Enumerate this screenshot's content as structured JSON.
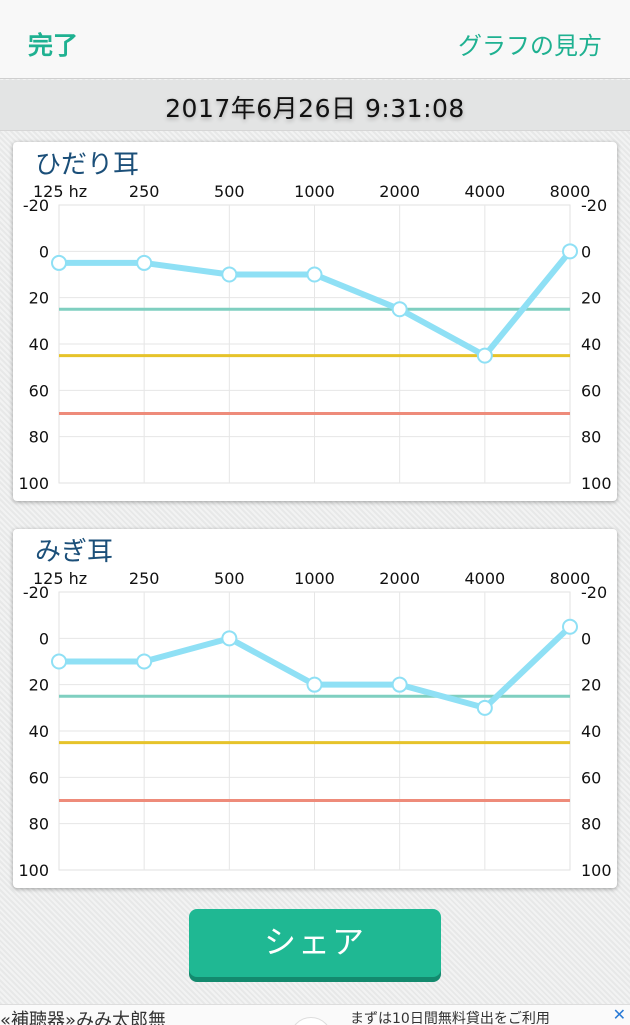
{
  "navbar": {
    "done_label": "完了",
    "help_label": "グラフの見方"
  },
  "datetime": "2017年6月26日 9:31:08",
  "share_label": "シェア",
  "ad": {
    "left_text": "«補聴器»みみ太郎無",
    "right_text": "まずは10日間無料貸出をご利用",
    "close_label": "✕"
  },
  "colors": {
    "accent": "#1fb191",
    "series_line": "#8fe0f5",
    "ref_green": "#7fcfc0",
    "ref_yellow": "#e6c32a",
    "ref_red": "#ee8b7a"
  },
  "chart_data": [
    {
      "type": "line",
      "title": "ひだり耳",
      "categories": [
        "125 hz",
        "250",
        "500",
        "1000",
        "2000",
        "4000",
        "8000"
      ],
      "y_ticks": [
        "-20",
        "0",
        "20",
        "40",
        "60",
        "80",
        "100"
      ],
      "ylim": [
        -20,
        100
      ],
      "y_inverted": true,
      "grid": true,
      "series": [
        {
          "values": [
            5,
            5,
            10,
            10,
            25,
            45,
            0
          ]
        }
      ],
      "reference_lines": [
        {
          "value": 25,
          "color": "#7fcfc0"
        },
        {
          "value": 45,
          "color": "#e6c32a"
        },
        {
          "value": 70,
          "color": "#ee8b7a"
        }
      ]
    },
    {
      "type": "line",
      "title": "みぎ耳",
      "categories": [
        "125 hz",
        "250",
        "500",
        "1000",
        "2000",
        "4000",
        "8000"
      ],
      "y_ticks": [
        "-20",
        "0",
        "20",
        "40",
        "60",
        "80",
        "100"
      ],
      "ylim": [
        -20,
        100
      ],
      "y_inverted": true,
      "grid": true,
      "series": [
        {
          "values": [
            10,
            10,
            0,
            20,
            20,
            30,
            -5
          ]
        }
      ],
      "reference_lines": [
        {
          "value": 25,
          "color": "#7fcfc0"
        },
        {
          "value": 45,
          "color": "#e6c32a"
        },
        {
          "value": 70,
          "color": "#ee8b7a"
        }
      ]
    }
  ]
}
